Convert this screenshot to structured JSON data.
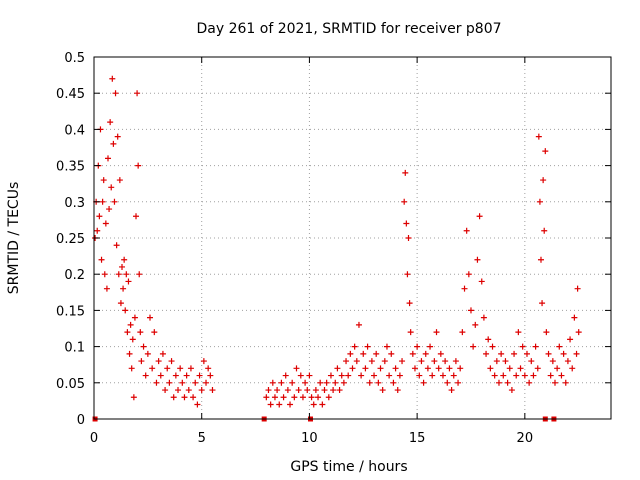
{
  "chart_data": {
    "type": "scatter",
    "title": "Day 261 of 2021, SRMTID for receiver p807",
    "xlabel": "GPS time / hours",
    "ylabel": "SRMTID / TECUs",
    "xlim": [
      0,
      24
    ],
    "ylim": [
      0,
      0.5
    ],
    "x_ticks": [
      0,
      5,
      10,
      15,
      20
    ],
    "x_tick_labels": [
      "0",
      "5",
      "10",
      "15",
      "20"
    ],
    "y_ticks": [
      0,
      0.05,
      0.1,
      0.15,
      0.2,
      0.25,
      0.3,
      0.35,
      0.4,
      0.45,
      0.5
    ],
    "y_tick_labels": [
      "0",
      "0.05",
      "0.1",
      "0.15",
      "0.2",
      "0.25",
      "0.3",
      "0.35",
      "0.4",
      "0.45",
      "0.5"
    ],
    "grid": true,
    "marker": "plus",
    "color": "#dd0000",
    "series": [
      {
        "name": "SRMTID",
        "points": [
          [
            0.05,
            0.25
          ],
          [
            0.1,
            0.3
          ],
          [
            0.15,
            0.26
          ],
          [
            0.2,
            0.35
          ],
          [
            0.25,
            0.28
          ],
          [
            0.3,
            0.4
          ],
          [
            0.35,
            0.22
          ],
          [
            0.4,
            0.3
          ],
          [
            0.45,
            0.33
          ],
          [
            0.5,
            0.2
          ],
          [
            0.55,
            0.27
          ],
          [
            0.6,
            0.18
          ],
          [
            0.65,
            0.36
          ],
          [
            0.7,
            0.29
          ],
          [
            0.75,
            0.41
          ],
          [
            0.8,
            0.32
          ],
          [
            0.85,
            0.47
          ],
          [
            0.9,
            0.38
          ],
          [
            0.95,
            0.3
          ],
          [
            1.0,
            0.45
          ],
          [
            1.05,
            0.24
          ],
          [
            1.1,
            0.39
          ],
          [
            1.15,
            0.2
          ],
          [
            1.2,
            0.33
          ],
          [
            1.25,
            0.16
          ],
          [
            1.3,
            0.21
          ],
          [
            1.35,
            0.18
          ],
          [
            1.4,
            0.22
          ],
          [
            1.45,
            0.15
          ],
          [
            1.5,
            0.2
          ],
          [
            1.55,
            0.12
          ],
          [
            1.6,
            0.19
          ],
          [
            1.65,
            0.09
          ],
          [
            1.7,
            0.13
          ],
          [
            1.75,
            0.07
          ],
          [
            1.8,
            0.11
          ],
          [
            1.85,
            0.03
          ],
          [
            1.9,
            0.14
          ],
          [
            1.95,
            0.28
          ],
          [
            2.0,
            0.45
          ],
          [
            2.05,
            0.35
          ],
          [
            2.1,
            0.2
          ],
          [
            2.15,
            0.12
          ],
          [
            2.2,
            0.08
          ],
          [
            2.3,
            0.1
          ],
          [
            2.4,
            0.06
          ],
          [
            2.5,
            0.09
          ],
          [
            2.6,
            0.14
          ],
          [
            2.7,
            0.07
          ],
          [
            2.8,
            0.12
          ],
          [
            2.9,
            0.05
          ],
          [
            3.0,
            0.08
          ],
          [
            3.1,
            0.06
          ],
          [
            3.2,
            0.09
          ],
          [
            3.3,
            0.04
          ],
          [
            3.4,
            0.07
          ],
          [
            3.5,
            0.05
          ],
          [
            3.6,
            0.08
          ],
          [
            3.7,
            0.03
          ],
          [
            3.8,
            0.06
          ],
          [
            3.9,
            0.04
          ],
          [
            4.0,
            0.07
          ],
          [
            4.1,
            0.05
          ],
          [
            4.2,
            0.03
          ],
          [
            4.3,
            0.06
          ],
          [
            4.4,
            0.04
          ],
          [
            4.5,
            0.07
          ],
          [
            4.6,
            0.03
          ],
          [
            4.7,
            0.05
          ],
          [
            4.8,
            0.02
          ],
          [
            4.9,
            0.06
          ],
          [
            5.0,
            0.04
          ],
          [
            5.1,
            0.08
          ],
          [
            5.2,
            0.05
          ],
          [
            5.3,
            0.07
          ],
          [
            5.4,
            0.06
          ],
          [
            5.5,
            0.04
          ],
          [
            8.0,
            0.03
          ],
          [
            8.1,
            0.04
          ],
          [
            8.2,
            0.02
          ],
          [
            8.3,
            0.05
          ],
          [
            8.4,
            0.03
          ],
          [
            8.5,
            0.04
          ],
          [
            8.6,
            0.02
          ],
          [
            8.7,
            0.05
          ],
          [
            8.8,
            0.03
          ],
          [
            8.9,
            0.06
          ],
          [
            9.0,
            0.04
          ],
          [
            9.1,
            0.02
          ],
          [
            9.2,
            0.05
          ],
          [
            9.3,
            0.03
          ],
          [
            9.4,
            0.07
          ],
          [
            9.5,
            0.04
          ],
          [
            9.6,
            0.06
          ],
          [
            9.7,
            0.03
          ],
          [
            9.8,
            0.05
          ],
          [
            9.9,
            0.04
          ],
          [
            10.0,
            0.06
          ],
          [
            10.1,
            0.03
          ],
          [
            10.2,
            0.02
          ],
          [
            10.3,
            0.04
          ],
          [
            10.4,
            0.03
          ],
          [
            10.5,
            0.05
          ],
          [
            10.6,
            0.02
          ],
          [
            10.7,
            0.04
          ],
          [
            10.8,
            0.05
          ],
          [
            10.9,
            0.03
          ],
          [
            11.0,
            0.06
          ],
          [
            11.1,
            0.04
          ],
          [
            11.2,
            0.05
          ],
          [
            11.3,
            0.07
          ],
          [
            11.4,
            0.04
          ],
          [
            11.5,
            0.06
          ],
          [
            11.6,
            0.05
          ],
          [
            11.7,
            0.08
          ],
          [
            11.8,
            0.06
          ],
          [
            11.9,
            0.09
          ],
          [
            12.0,
            0.07
          ],
          [
            12.1,
            0.1
          ],
          [
            12.2,
            0.08
          ],
          [
            12.3,
            0.13
          ],
          [
            12.4,
            0.06
          ],
          [
            12.5,
            0.09
          ],
          [
            12.6,
            0.07
          ],
          [
            12.7,
            0.1
          ],
          [
            12.8,
            0.05
          ],
          [
            12.9,
            0.08
          ],
          [
            13.0,
            0.06
          ],
          [
            13.1,
            0.09
          ],
          [
            13.2,
            0.05
          ],
          [
            13.3,
            0.07
          ],
          [
            13.4,
            0.04
          ],
          [
            13.5,
            0.08
          ],
          [
            13.6,
            0.1
          ],
          [
            13.7,
            0.06
          ],
          [
            13.8,
            0.09
          ],
          [
            13.9,
            0.05
          ],
          [
            14.0,
            0.07
          ],
          [
            14.1,
            0.04
          ],
          [
            14.2,
            0.06
          ],
          [
            14.3,
            0.08
          ],
          [
            14.4,
            0.3
          ],
          [
            14.45,
            0.34
          ],
          [
            14.5,
            0.27
          ],
          [
            14.55,
            0.2
          ],
          [
            14.6,
            0.25
          ],
          [
            14.65,
            0.16
          ],
          [
            14.7,
            0.12
          ],
          [
            14.8,
            0.09
          ],
          [
            14.9,
            0.07
          ],
          [
            15.0,
            0.1
          ],
          [
            15.1,
            0.06
          ],
          [
            15.2,
            0.08
          ],
          [
            15.3,
            0.05
          ],
          [
            15.4,
            0.09
          ],
          [
            15.5,
            0.07
          ],
          [
            15.6,
            0.1
          ],
          [
            15.7,
            0.06
          ],
          [
            15.8,
            0.08
          ],
          [
            15.9,
            0.12
          ],
          [
            16.0,
            0.07
          ],
          [
            16.1,
            0.09
          ],
          [
            16.2,
            0.06
          ],
          [
            16.3,
            0.08
          ],
          [
            16.4,
            0.05
          ],
          [
            16.5,
            0.07
          ],
          [
            16.6,
            0.04
          ],
          [
            16.7,
            0.06
          ],
          [
            16.8,
            0.08
          ],
          [
            16.9,
            0.05
          ],
          [
            17.0,
            0.07
          ],
          [
            17.1,
            0.12
          ],
          [
            17.2,
            0.18
          ],
          [
            17.3,
            0.26
          ],
          [
            17.4,
            0.2
          ],
          [
            17.5,
            0.15
          ],
          [
            17.6,
            0.1
          ],
          [
            17.7,
            0.13
          ],
          [
            17.8,
            0.22
          ],
          [
            17.9,
            0.28
          ],
          [
            18.0,
            0.19
          ],
          [
            18.1,
            0.14
          ],
          [
            18.2,
            0.09
          ],
          [
            18.3,
            0.11
          ],
          [
            18.4,
            0.07
          ],
          [
            18.5,
            0.1
          ],
          [
            18.6,
            0.06
          ],
          [
            18.7,
            0.08
          ],
          [
            18.8,
            0.05
          ],
          [
            18.9,
            0.09
          ],
          [
            19.0,
            0.06
          ],
          [
            19.1,
            0.08
          ],
          [
            19.2,
            0.05
          ],
          [
            19.3,
            0.07
          ],
          [
            19.4,
            0.04
          ],
          [
            19.5,
            0.09
          ],
          [
            19.6,
            0.06
          ],
          [
            19.7,
            0.12
          ],
          [
            19.8,
            0.07
          ],
          [
            19.9,
            0.1
          ],
          [
            20.0,
            0.06
          ],
          [
            20.1,
            0.09
          ],
          [
            20.2,
            0.05
          ],
          [
            20.3,
            0.08
          ],
          [
            20.4,
            0.06
          ],
          [
            20.5,
            0.1
          ],
          [
            20.6,
            0.07
          ],
          [
            20.65,
            0.39
          ],
          [
            20.7,
            0.3
          ],
          [
            20.75,
            0.22
          ],
          [
            20.8,
            0.16
          ],
          [
            20.85,
            0.33
          ],
          [
            20.9,
            0.26
          ],
          [
            20.95,
            0.37
          ],
          [
            21.0,
            0.12
          ],
          [
            21.1,
            0.09
          ],
          [
            21.2,
            0.06
          ],
          [
            21.3,
            0.08
          ],
          [
            21.4,
            0.05
          ],
          [
            21.5,
            0.07
          ],
          [
            21.6,
            0.1
          ],
          [
            21.7,
            0.06
          ],
          [
            21.8,
            0.09
          ],
          [
            21.9,
            0.05
          ],
          [
            22.0,
            0.08
          ],
          [
            22.1,
            0.11
          ],
          [
            22.2,
            0.07
          ],
          [
            22.3,
            0.14
          ],
          [
            22.4,
            0.09
          ],
          [
            22.45,
            0.18
          ],
          [
            22.5,
            0.12
          ]
        ]
      }
    ],
    "zero_markers": [
      [
        0.05,
        0
      ],
      [
        7.9,
        0
      ],
      [
        10.05,
        0
      ],
      [
        20.95,
        0
      ],
      [
        21.35,
        0
      ]
    ]
  }
}
